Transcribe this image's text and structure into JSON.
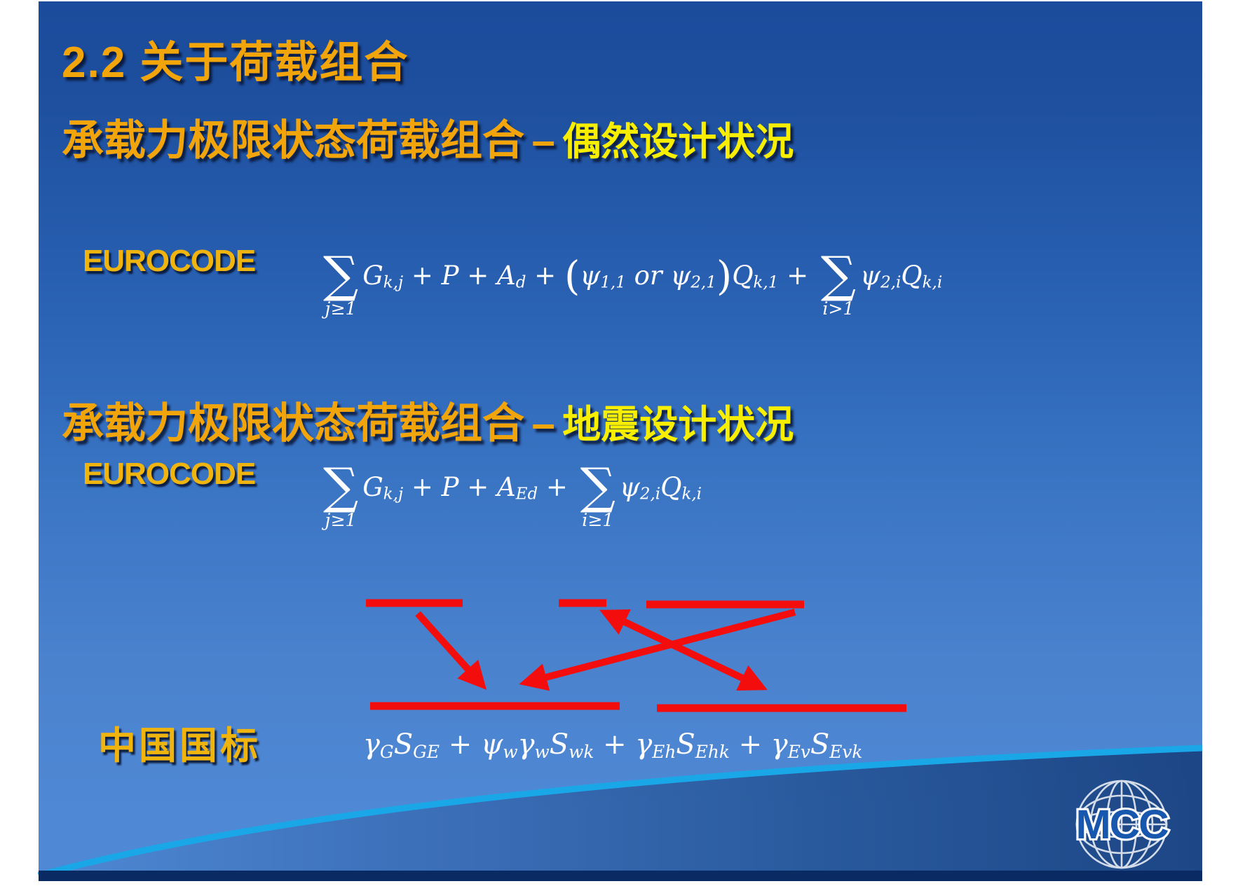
{
  "slide": {
    "title": "2.2 关于荷载组合",
    "headings": [
      {
        "main": "承载力极限状态荷载组合",
        "dash": "–",
        "accent": "偶然设计状况"
      },
      {
        "main": "承载力极限状态荷载组合",
        "dash": "–",
        "accent": "地震设计状况"
      }
    ],
    "labels": {
      "eurocode1": "EUROCODE",
      "eurocode2": "EUROCODE",
      "china": "中国国标"
    },
    "logo": {
      "text": "MCC"
    },
    "colors": {
      "slide_top": "#1b4b9c",
      "slide_bottom": "#4f88d4",
      "accent_gold": "#f2a40b",
      "eurocode_gold": "#f0b40e",
      "accent_yellow": "#f8ef00",
      "formula_white": "#ffffff",
      "annotation_red": "#f40d0d",
      "swoosh_cyan": "#1aa7e8",
      "footer_navy": "#0a2a63",
      "logo_blue": "#1857ae"
    }
  },
  "formulas": {
    "accidental": [
      {
        "sum": "j≥1"
      },
      {
        "t": "G"
      },
      {
        "sub": "k,j"
      },
      {
        "t": " + P + A"
      },
      {
        "sub": "d"
      },
      {
        "t": " + "
      },
      {
        "par": "("
      },
      {
        "t": "ψ"
      },
      {
        "sub": "1,1"
      },
      {
        "t": " or ψ"
      },
      {
        "sub": "2,1"
      },
      {
        "par": ")"
      },
      {
        "t": "Q"
      },
      {
        "sub": "k,1"
      },
      {
        "t": " + "
      },
      {
        "sum": "i>1"
      },
      {
        "t": "ψ"
      },
      {
        "sub": "2,i"
      },
      {
        "t": "Q"
      },
      {
        "sub": "k,i"
      }
    ],
    "seismic": [
      {
        "sum": "j≥1"
      },
      {
        "t": "G"
      },
      {
        "sub": "k,j"
      },
      {
        "t": " + P + A"
      },
      {
        "sub": "Ed"
      },
      {
        "t": " + "
      },
      {
        "sum": "i≥1"
      },
      {
        "t": "ψ"
      },
      {
        "sub": "2,i"
      },
      {
        "t": "Q"
      },
      {
        "sub": "k,i"
      }
    ],
    "china": [
      {
        "t": "γ"
      },
      {
        "sub": "G"
      },
      {
        "t": "S"
      },
      {
        "sub": "GE"
      },
      {
        "t": " + ψ"
      },
      {
        "sub": "w"
      },
      {
        "t": "γ"
      },
      {
        "sub": "w"
      },
      {
        "t": "S"
      },
      {
        "sub": "wk"
      },
      {
        "t": " + γ"
      },
      {
        "sub": "Eh"
      },
      {
        "t": "S"
      },
      {
        "sub": "Ehk"
      },
      {
        "t": " + γ"
      },
      {
        "sub": "Ev"
      },
      {
        "t": "S"
      },
      {
        "sub": "Evk"
      }
    ]
  }
}
